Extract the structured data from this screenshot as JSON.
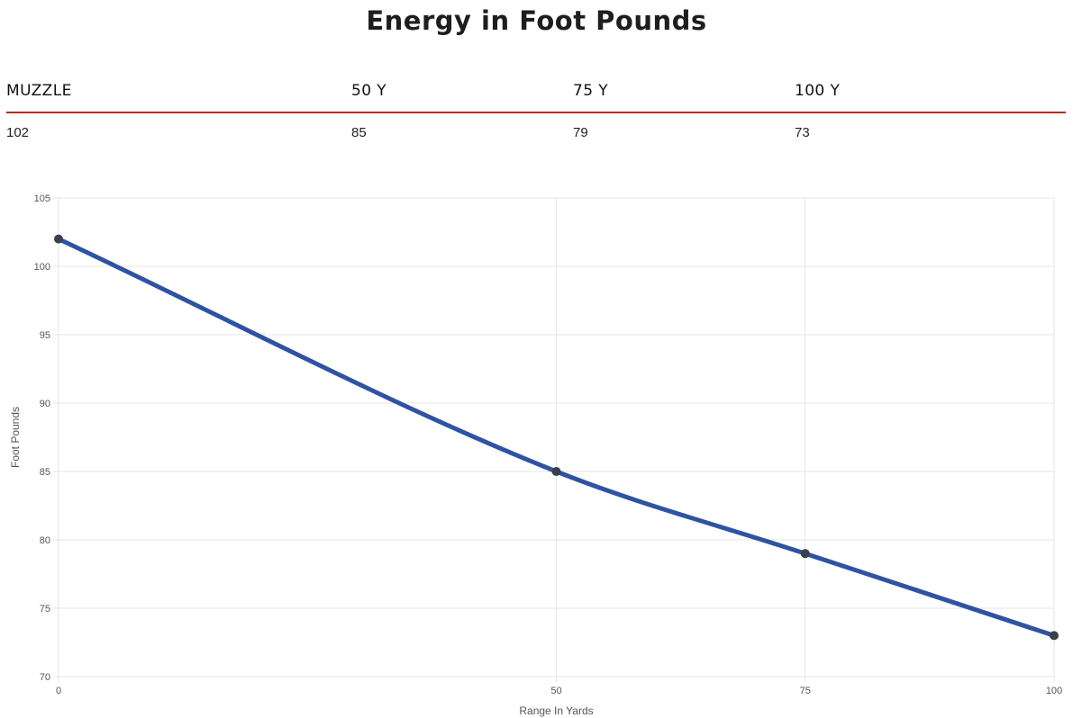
{
  "title": "Energy in Foot Pounds",
  "table": {
    "headers": [
      "MUZZLE",
      "50 Y",
      "75 Y",
      "100 Y"
    ],
    "values": [
      "102",
      "85",
      "79",
      "73"
    ]
  },
  "colors": {
    "line": "#2e53a3",
    "point": "#3a3f4a",
    "grid": "#e6e6e6",
    "table_rule": "#b52a22"
  },
  "chart_data": {
    "type": "line",
    "x": [
      0,
      50,
      75,
      100
    ],
    "series": [
      {
        "values": [
          102,
          85,
          79,
          73
        ]
      }
    ],
    "xticks": [
      0,
      50,
      75,
      100
    ],
    "yticks": [
      70,
      75,
      80,
      85,
      90,
      95,
      100,
      105
    ],
    "xlim": [
      0,
      100
    ],
    "ylim": [
      70,
      105
    ],
    "xlabel": "Range In Yards",
    "ylabel": "Foot Pounds",
    "grid": true,
    "legend": "none"
  }
}
